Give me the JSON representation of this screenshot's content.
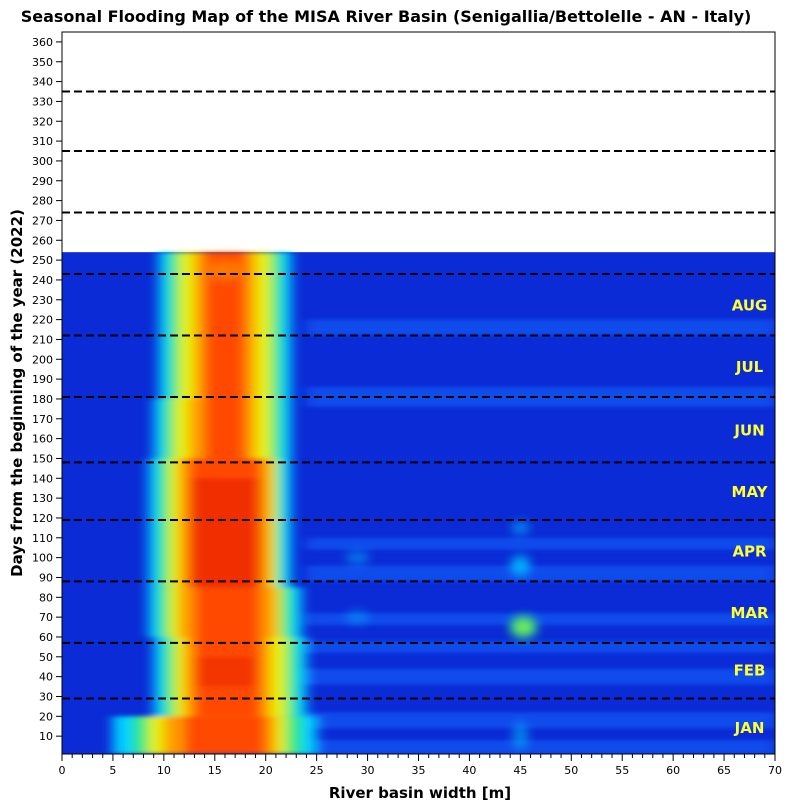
{
  "chart_data": {
    "type": "heatmap",
    "title": "Seasonal Flooding Map of the MISA River Basin (Senigallia/Bettolelle - AN - Italy)",
    "xlabel": "River basin width [m]",
    "ylabel": "Days from the beginning of the year (2022)",
    "xlim": [
      0,
      70
    ],
    "ylim": [
      1,
      365
    ],
    "x_ticks": [
      "0",
      "5",
      "10",
      "15",
      "20",
      "25",
      "30",
      "35",
      "40",
      "45",
      "50",
      "55",
      "60",
      "65",
      "70"
    ],
    "y_ticks": [
      "10",
      "20",
      "30",
      "40",
      "50",
      "60",
      "70",
      "80",
      "90",
      "100",
      "110",
      "120",
      "130",
      "140",
      "150",
      "160",
      "170",
      "180",
      "190",
      "200",
      "210",
      "220",
      "230",
      "240",
      "250",
      "260",
      "270",
      "280",
      "290",
      "300",
      "310",
      "320",
      "330",
      "340",
      "350",
      "360"
    ],
    "data_extent_days": [
      1,
      254
    ],
    "month_boundaries_days": [
      29,
      57,
      88,
      119,
      148,
      181,
      212,
      243,
      274,
      305,
      335
    ],
    "months": [
      {
        "label": "JAN",
        "day": 14
      },
      {
        "label": "FEB",
        "day": 43
      },
      {
        "label": "MAR",
        "day": 72
      },
      {
        "label": "APR",
        "day": 103
      },
      {
        "label": "MAY",
        "day": 133
      },
      {
        "label": "JUN",
        "day": 164
      },
      {
        "label": "JUL",
        "day": 196
      },
      {
        "label": "AUG",
        "day": 227
      }
    ],
    "grid": false,
    "colorscale": [
      "#0b2bd6",
      "#1a66ff",
      "#00d0ff",
      "#2ee87a",
      "#e8f000",
      "#ff9a00",
      "#ff4a00",
      "#e81e0a"
    ],
    "colors": {
      "label_month": "#ffff33",
      "boundary_line": "#000000",
      "background": "#ffffff"
    }
  }
}
